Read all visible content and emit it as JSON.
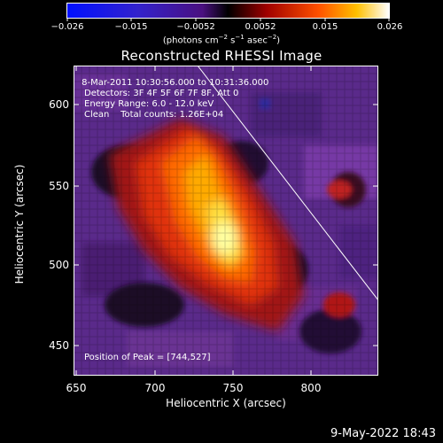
{
  "colorbar": {
    "ticks": [
      "−0.026",
      "−0.015",
      "−0.0052",
      "0.0052",
      "0.015",
      "0.026"
    ],
    "unit_text": "(photons cm",
    "unit_parts": [
      "(photons cm",
      "−2",
      " s",
      "−1",
      " asec",
      "−2",
      ")"
    ]
  },
  "title": "Reconstructed RHESSI Image",
  "info": {
    "line1": " 8-Mar-2011 10:30:56.000 to 10:31:36.000",
    "line2": "Detectors: 3F 4F 5F 6F 7F 8F, Att 0",
    "line3": "Energy Range: 6.0 - 12.0 keV",
    "line4": "Clean    Total counts: 1.26E+04",
    "peak": "Position of Peak = [744,527]"
  },
  "axes": {
    "xlabel": "Heliocentric X (arcsec)",
    "ylabel": "Heliocentric Y (arcsec)",
    "xticks": [
      "650",
      "700",
      "750",
      "800"
    ],
    "yticks": [
      "600",
      "550",
      "500",
      "450"
    ]
  },
  "timestamp": "9-May-2022 18:43",
  "colors": {
    "background": "#000000",
    "text": "#ffffff"
  }
}
